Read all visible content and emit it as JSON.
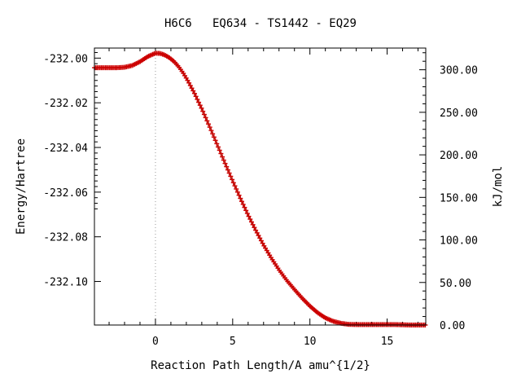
{
  "chart_data": {
    "type": "scatter",
    "title": "H6C6   EQ634 - TS1442 - EQ29",
    "xlabel": "Reaction Path Length/A amu^{1/2}",
    "ylabel": "Energy/Hartree",
    "y2label": "kJ/mol",
    "xlim": [
      -3.95,
      17.5
    ],
    "ylim": [
      -232.1195,
      -231.9955
    ],
    "y2lim": [
      0.0,
      325.5
    ],
    "x_ticks": [
      0,
      5,
      10,
      15
    ],
    "x_tick_labels": [
      "0",
      "5",
      "10",
      "15"
    ],
    "y_ticks": [
      -232.0,
      -232.02,
      -232.04,
      -232.06,
      -232.08,
      -232.1
    ],
    "y_tick_labels": [
      "-232.00",
      "-232.02",
      "-232.04",
      "-232.06",
      "-232.08",
      "-232.10"
    ],
    "y2_ticks": [
      0,
      50,
      100,
      150,
      200,
      250,
      300
    ],
    "y2_tick_labels": [
      "0.00",
      "50.00",
      "100.00",
      "150.00",
      "200.00",
      "250.00",
      "300.00"
    ],
    "ts_marker_x": 0,
    "grid": false,
    "colors": {
      "marker": "#cc0000",
      "line": "#556b2f",
      "ts_line": "#999999",
      "axis": "#000000"
    },
    "series": [
      {
        "points": [
          [
            -3.95,
            -232.0043
          ],
          [
            -3.5,
            -232.0043
          ],
          [
            -3.0,
            -232.0043
          ],
          [
            -2.5,
            -232.0043
          ],
          [
            -2.0,
            -232.0041
          ],
          [
            -1.5,
            -232.0033
          ],
          [
            -1.0,
            -232.0016
          ],
          [
            -0.5,
            -231.9993
          ],
          [
            0.0,
            -231.9978
          ],
          [
            0.3,
            -231.9979
          ],
          [
            0.6,
            -231.9986
          ],
          [
            0.9,
            -231.9998
          ],
          [
            1.2,
            -232.0015
          ],
          [
            1.5,
            -232.0038
          ],
          [
            1.8,
            -232.0067
          ],
          [
            2.1,
            -232.0102
          ],
          [
            2.5,
            -232.0154
          ],
          [
            3.0,
            -232.0227
          ],
          [
            3.5,
            -232.0306
          ],
          [
            4.0,
            -232.0388
          ],
          [
            4.5,
            -232.047
          ],
          [
            5.0,
            -232.055
          ],
          [
            5.5,
            -232.0628
          ],
          [
            6.0,
            -232.0703
          ],
          [
            6.5,
            -232.0772
          ],
          [
            7.0,
            -232.0837
          ],
          [
            7.5,
            -232.0895
          ],
          [
            8.0,
            -232.0948
          ],
          [
            8.5,
            -232.0995
          ],
          [
            9.0,
            -232.1036
          ],
          [
            9.5,
            -232.1075
          ],
          [
            10.0,
            -232.111
          ],
          [
            10.5,
            -232.114
          ],
          [
            11.0,
            -232.1163
          ],
          [
            11.5,
            -232.1178
          ],
          [
            12.0,
            -232.1187
          ],
          [
            12.5,
            -232.1192
          ],
          [
            13.0,
            -232.1193
          ],
          [
            13.5,
            -232.1193
          ],
          [
            14.0,
            -232.1193
          ],
          [
            14.5,
            -232.1193
          ],
          [
            15.0,
            -232.1193
          ],
          [
            15.5,
            -232.1193
          ],
          [
            16.0,
            -232.1194
          ],
          [
            16.5,
            -232.1195
          ],
          [
            17.0,
            -232.1195
          ],
          [
            17.5,
            -232.1195
          ]
        ]
      }
    ]
  }
}
